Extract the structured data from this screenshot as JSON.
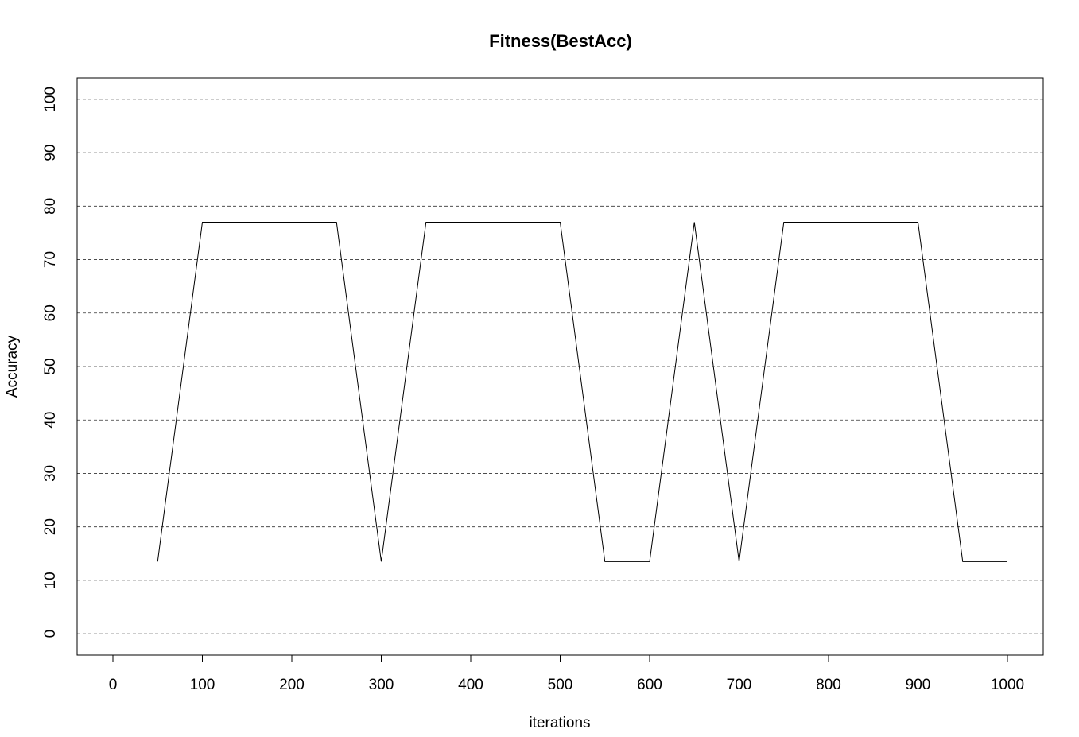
{
  "chart_data": {
    "type": "line",
    "title": "Fitness(BestAcc)",
    "xlabel": "iterations",
    "ylabel": "Accuracy",
    "xlim": [
      -40,
      1040
    ],
    "ylim": [
      -4,
      104
    ],
    "x_ticks": [
      "0",
      "100",
      "200",
      "300",
      "400",
      "500",
      "600",
      "700",
      "800",
      "900",
      "1000"
    ],
    "y_ticks": [
      "0",
      "10",
      "20",
      "30",
      "40",
      "50",
      "60",
      "70",
      "80",
      "90",
      "100"
    ],
    "grid": "horizontal-dashed",
    "series": [
      {
        "x": [
          50,
          100,
          150,
          200,
          250,
          300,
          350,
          400,
          450,
          500,
          550,
          600,
          650,
          700,
          750,
          800,
          850,
          900,
          950,
          1000
        ],
        "values": [
          13.5,
          77,
          77,
          77,
          77,
          13.5,
          77,
          77,
          77,
          77,
          13.5,
          13.5,
          77,
          13.5,
          77,
          77,
          77,
          77,
          13.5,
          13.5
        ],
        "color": "#000000"
      }
    ]
  }
}
